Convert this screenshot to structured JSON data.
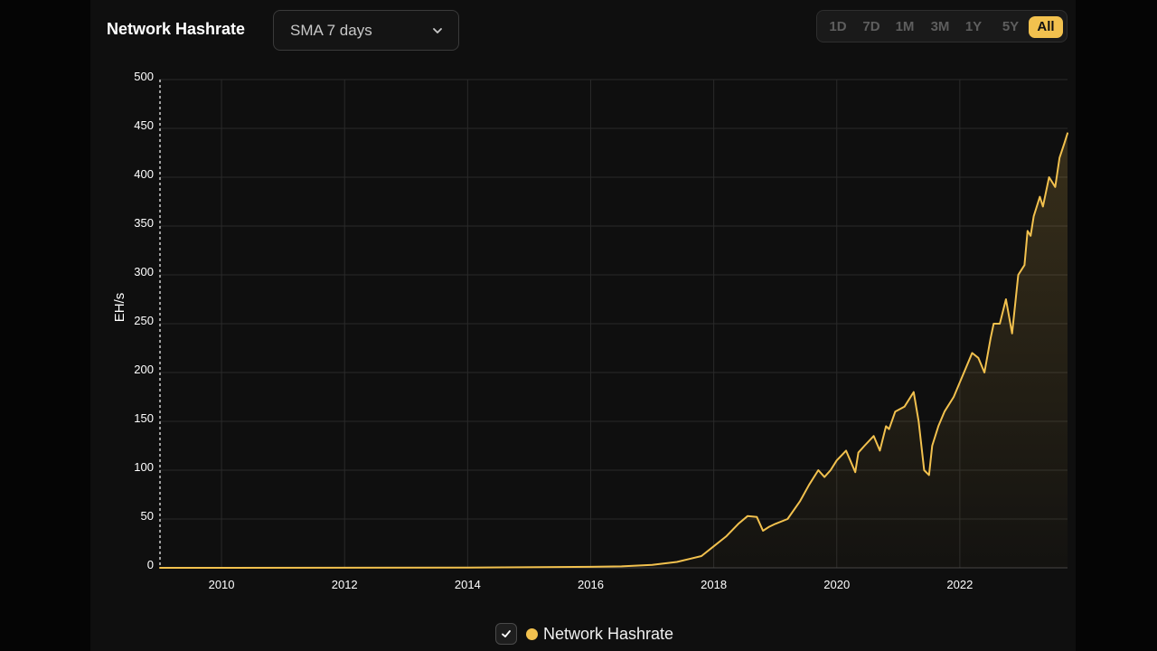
{
  "header": {
    "title": "Network Hashrate",
    "select_value": "SMA 7 days",
    "ranges": [
      "1D",
      "7D",
      "1M",
      "3M",
      "1Y",
      "5Y",
      "All"
    ],
    "active_range": "All"
  },
  "colors": {
    "accent": "#f2c14e",
    "background": "#0f0f0f",
    "grid": "#2a2a2a"
  },
  "legend": {
    "label": "Network Hashrate",
    "checked": true
  },
  "chart_data": {
    "type": "area",
    "title": "",
    "xlabel": "",
    "ylabel": "EH/s",
    "xlim": [
      2009.0,
      2023.75
    ],
    "ylim": [
      0,
      500
    ],
    "x_ticks": [
      2010,
      2012,
      2014,
      2016,
      2018,
      2020,
      2022
    ],
    "x_tick_labels": [
      "2010",
      "2012",
      "2014",
      "2016",
      "2018",
      "2020",
      "2022"
    ],
    "y_ticks": [
      0,
      50,
      100,
      150,
      200,
      250,
      300,
      350,
      400,
      450,
      500
    ],
    "y_tick_labels": [
      "0",
      "50",
      "100",
      "150",
      "200",
      "250",
      "300",
      "350",
      "400",
      "450",
      "500"
    ],
    "grid": true,
    "legend_position": "bottom-center",
    "series": [
      {
        "name": "Network Hashrate",
        "x": [
          2009.0,
          2014.0,
          2016.0,
          2016.5,
          2017.0,
          2017.4,
          2017.8,
          2018.0,
          2018.2,
          2018.4,
          2018.55,
          2018.7,
          2018.8,
          2018.9,
          2019.0,
          2019.2,
          2019.4,
          2019.55,
          2019.7,
          2019.8,
          2019.9,
          2020.0,
          2020.15,
          2020.3,
          2020.35,
          2020.45,
          2020.6,
          2020.7,
          2020.8,
          2020.85,
          2020.95,
          2021.1,
          2021.25,
          2021.33,
          2021.42,
          2021.5,
          2021.55,
          2021.65,
          2021.75,
          2021.9,
          2022.0,
          2022.1,
          2022.2,
          2022.3,
          2022.4,
          2022.5,
          2022.55,
          2022.65,
          2022.75,
          2022.85,
          2022.95,
          2023.05,
          2023.1,
          2023.15,
          2023.2,
          2023.3,
          2023.35,
          2023.45,
          2023.55,
          2023.62,
          2023.7,
          2023.75
        ],
        "values": [
          0,
          0.2,
          1,
          1.5,
          3,
          6,
          12,
          22,
          32,
          45,
          53,
          52,
          38,
          42,
          45,
          50,
          68,
          85,
          100,
          93,
          100,
          110,
          120,
          98,
          118,
          125,
          135,
          120,
          145,
          142,
          160,
          165,
          180,
          150,
          100,
          95,
          125,
          145,
          160,
          175,
          190,
          205,
          220,
          215,
          200,
          235,
          250,
          250,
          275,
          240,
          300,
          310,
          345,
          340,
          360,
          380,
          370,
          400,
          390,
          420,
          435,
          445
        ]
      }
    ]
  }
}
